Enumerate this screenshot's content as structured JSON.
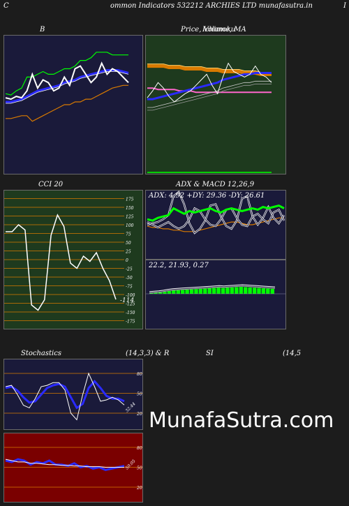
{
  "header": {
    "left_letter": "C",
    "title": "ommon  Indicators 532212  ARCHIES LTD munafasutra.in",
    "right_letter": "I"
  },
  "colors": {
    "navy": "#1a1a3a",
    "green_panel": "#1e3a1e",
    "red_panel": "#7a0000",
    "orange": "#d97a00",
    "white": "#ffffff",
    "blue": "#2a2aff",
    "lime": "#00ff00",
    "pink": "#ff66cc"
  },
  "watermark": "MunafaSutra.com",
  "panels": {
    "bollinger": {
      "title": "B"
    },
    "price": {
      "title": "Price,  Volume,  MA",
      "overlap": "Ichimoku"
    },
    "cci": {
      "title": "CCI 20",
      "last_label": "-114",
      "ticks": [
        "175",
        "150",
        "125",
        "100",
        "75",
        "50",
        "25",
        "0",
        "-25",
        "-50",
        "-75",
        "-100",
        "-125",
        "-150",
        "-175"
      ]
    },
    "adx_macd": {
      "title": "ADX  & MACD 12,26,9",
      "adx_label": "ADX: 4.92  +DY: 29.36  -DY: 26.61",
      "macd_label": "22.2,  21.93,  0.27"
    },
    "stochastics": {
      "title_left": "Stochastics",
      "title_mid": "(14,3,3) & R",
      "ticks": [
        "80",
        "50",
        "20"
      ],
      "last_label": "32.44"
    },
    "rsi": {
      "title_mid": "SI",
      "title_right": "(14,5",
      "ticks": [
        "80",
        "50",
        "20"
      ],
      "last_label": "50.05"
    }
  },
  "chart_data": [
    {
      "type": "line",
      "panel": "bollinger",
      "series": [
        {
          "values": [
            0.55,
            0.54,
            0.56,
            0.55,
            0.6,
            0.72,
            0.62,
            0.68,
            0.66,
            0.6,
            0.62,
            0.7,
            0.64,
            0.76,
            0.78,
            0.72,
            0.66,
            0.7,
            0.8,
            0.72,
            0.76,
            0.74,
            0.7,
            0.66
          ]
        },
        {
          "values": [
            0.58,
            0.57,
            0.6,
            0.62,
            0.7,
            0.7,
            0.72,
            0.74,
            0.72,
            0.72,
            0.74,
            0.76,
            0.76,
            0.78,
            0.82,
            0.82,
            0.84,
            0.88,
            0.88,
            0.88,
            0.86,
            0.86,
            0.86,
            0.86
          ]
        },
        {
          "values": [
            0.52,
            0.52,
            0.53,
            0.54,
            0.56,
            0.58,
            0.6,
            0.61,
            0.62,
            0.63,
            0.64,
            0.66,
            0.67,
            0.68,
            0.7,
            0.71,
            0.72,
            0.73,
            0.74,
            0.75,
            0.75,
            0.75,
            0.74,
            0.73
          ]
        },
        {
          "values": [
            0.4,
            0.4,
            0.41,
            0.42,
            0.42,
            0.38,
            0.4,
            0.42,
            0.44,
            0.46,
            0.48,
            0.5,
            0.5,
            0.52,
            0.52,
            0.54,
            0.54,
            0.56,
            0.58,
            0.6,
            0.62,
            0.63,
            0.64,
            0.64
          ]
        }
      ]
    },
    {
      "type": "line",
      "panel": "price",
      "series": [
        {
          "values": [
            0.55,
            0.6,
            0.66,
            0.62,
            0.56,
            0.52,
            0.55,
            0.58,
            0.6,
            0.64,
            0.68,
            0.72,
            0.64,
            0.58,
            0.7,
            0.8,
            0.74,
            0.72,
            0.7,
            0.72,
            0.78,
            0.72,
            0.7,
            0.66
          ]
        },
        {
          "values": [
            0.54,
            0.54,
            0.55,
            0.56,
            0.57,
            0.58,
            0.59,
            0.6,
            0.61,
            0.62,
            0.63,
            0.64,
            0.65,
            0.66,
            0.68,
            0.69,
            0.7,
            0.71,
            0.72,
            0.72,
            0.73,
            0.73,
            0.73,
            0.73
          ]
        },
        {
          "values": [
            0.78,
            0.78,
            0.78,
            0.78,
            0.77,
            0.77,
            0.77,
            0.76,
            0.76,
            0.76,
            0.76,
            0.75,
            0.75,
            0.75,
            0.74,
            0.74,
            0.74,
            0.74,
            0.73,
            0.73,
            0.73,
            0.72,
            0.72,
            0.72
          ]
        },
        {
          "values": [
            0.62,
            0.62,
            0.61,
            0.61,
            0.61,
            0.61,
            0.6,
            0.6,
            0.6,
            0.59,
            0.59,
            0.59,
            0.59,
            0.59,
            0.59,
            0.59,
            0.59,
            0.59,
            0.59,
            0.59,
            0.59,
            0.59,
            0.59,
            0.59
          ]
        }
      ]
    },
    {
      "type": "line",
      "panel": "cci",
      "series": [
        {
          "values": [
            80,
            80,
            100,
            85,
            -130,
            -145,
            -115,
            70,
            128,
            95,
            -10,
            -25,
            10,
            -5,
            20,
            -25,
            -60,
            -114
          ]
        }
      ]
    },
    {
      "type": "line",
      "panel": "adx",
      "series": [
        {
          "values": [
            58,
            56,
            60,
            62,
            64,
            74,
            70,
            66,
            70,
            68,
            70,
            72,
            74,
            70,
            68,
            72,
            74,
            72,
            70,
            72,
            74,
            72,
            76,
            74,
            76,
            78,
            74
          ]
        },
        {
          "values": [
            50,
            52,
            54,
            58,
            64,
            92,
            98,
            80,
            52,
            38,
            44,
            56,
            78,
            80,
            62,
            48,
            44,
            56,
            88,
            92,
            62,
            50,
            60,
            76,
            60,
            52,
            64
          ]
        },
        {
          "values": [
            54,
            50,
            46,
            50,
            54,
            48,
            44,
            48,
            58,
            74,
            70,
            58,
            50,
            48,
            58,
            72,
            74,
            60,
            50,
            48,
            62,
            66,
            58,
            52,
            68,
            72,
            56
          ]
        },
        {
          "values": [
            48,
            46,
            46,
            44,
            44,
            42,
            42,
            40,
            40,
            40,
            42,
            44,
            46,
            48,
            50,
            52,
            54,
            54,
            52,
            50,
            50,
            52,
            54,
            56,
            58,
            60,
            60
          ]
        }
      ]
    },
    {
      "type": "bar",
      "panel": "macd",
      "values": [
        0.05,
        0.08,
        0.1,
        0.14,
        0.2,
        0.24,
        0.26,
        0.28,
        0.3,
        0.32,
        0.34,
        0.36,
        0.38,
        0.4,
        0.42,
        0.44,
        0.42,
        0.44,
        0.46,
        0.48,
        0.5,
        0.48,
        0.46,
        0.44,
        0.42,
        0.4,
        0.38,
        0.36
      ]
    },
    {
      "type": "line",
      "panel": "stochastics",
      "series": [
        {
          "values": [
            60,
            62,
            48,
            32,
            28,
            42,
            60,
            62,
            66,
            66,
            55,
            20,
            10,
            48,
            80,
            60,
            38,
            40,
            44,
            40,
            32.44
          ]
        },
        {
          "values": [
            58,
            60,
            54,
            44,
            36,
            38,
            48,
            58,
            62,
            64,
            60,
            44,
            28,
            34,
            58,
            68,
            58,
            46,
            42,
            42,
            38
          ]
        }
      ]
    },
    {
      "type": "line",
      "panel": "rsi",
      "series": [
        {
          "values": [
            62,
            60,
            58,
            58,
            56,
            56,
            55,
            54,
            54,
            53,
            53,
            52,
            52,
            51,
            51,
            51,
            50,
            50,
            50,
            50.05
          ]
        },
        {
          "values": [
            60,
            58,
            62,
            60,
            54,
            58,
            56,
            60,
            54,
            54,
            52,
            56,
            50,
            52,
            48,
            50,
            46,
            48,
            50,
            52
          ]
        }
      ]
    }
  ]
}
